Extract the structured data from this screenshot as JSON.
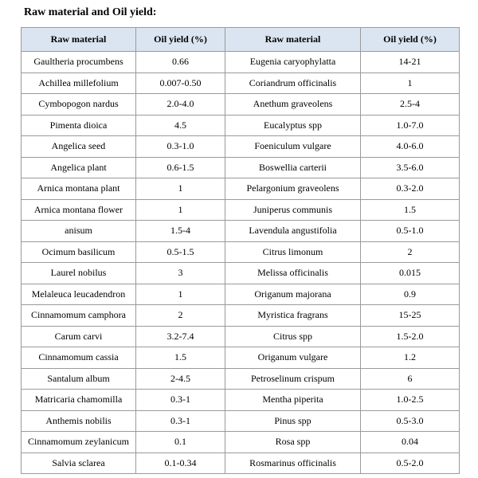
{
  "title": "Raw material and Oil yield:",
  "table": {
    "headers": [
      "Raw material",
      "Oil yield (%)",
      "Raw material",
      "Oil yield (%)"
    ],
    "rows": [
      [
        "Gaultheria procumbens",
        "0.66",
        "Eugenia caryophylatta",
        "14-21"
      ],
      [
        "Achillea millefolium",
        "0.007-0.50",
        "Coriandrum officinalis",
        "1"
      ],
      [
        "Cymbopogon nardus",
        "2.0-4.0",
        "Anethum graveolens",
        "2.5-4"
      ],
      [
        "Pimenta dioica",
        "4.5",
        "Eucalyptus spp",
        "1.0-7.0"
      ],
      [
        "Angelica seed",
        "0.3-1.0",
        "Foeniculum vulgare",
        "4.0-6.0"
      ],
      [
        "Angelica plant",
        "0.6-1.5",
        "Boswellia carterii",
        "3.5-6.0"
      ],
      [
        "Arnica montana plant",
        "1",
        "Pelargonium graveolens",
        "0.3-2.0"
      ],
      [
        "Arnica montana flower",
        "1",
        "Juniperus communis",
        "1.5"
      ],
      [
        "anisum",
        "1.5-4",
        "Lavendula angustifolia",
        "0.5-1.0"
      ],
      [
        "Ocimum basilicum",
        "0.5-1.5",
        "Citrus limonum",
        "2"
      ],
      [
        "Laurel nobilus",
        "3",
        "Melissa officinalis",
        "0.015"
      ],
      [
        "Melaleuca leucadendron",
        "1",
        "Origanum majorana",
        "0.9"
      ],
      [
        "Cinnamomum camphora",
        "2",
        "Myristica fragrans",
        "15-25"
      ],
      [
        "Carum carvi",
        "3.2-7.4",
        "Citrus spp",
        "1.5-2.0"
      ],
      [
        "Cinnamomum cassia",
        "1.5",
        "Origanum vulgare",
        "1.2"
      ],
      [
        "Santalum album",
        "2-4.5",
        "Petroselinum crispum",
        "6"
      ],
      [
        "Matricaria chamomilla",
        "0.3-1",
        "Mentha piperita",
        "1.0-2.5"
      ],
      [
        "Anthemis nobilis",
        "0.3-1",
        "Pinus spp",
        "0.5-3.0"
      ],
      [
        "Cinnamomum zeylanicum",
        "0.1",
        "Rosa spp",
        "0.04"
      ],
      [
        "Salvia sclarea",
        "0.1-0.34",
        "Rosmarinus  officinalis",
        "0.5-2.0"
      ]
    ]
  },
  "colors": {
    "header_background": "#dbe5f1",
    "border": "#9a9a9a"
  }
}
